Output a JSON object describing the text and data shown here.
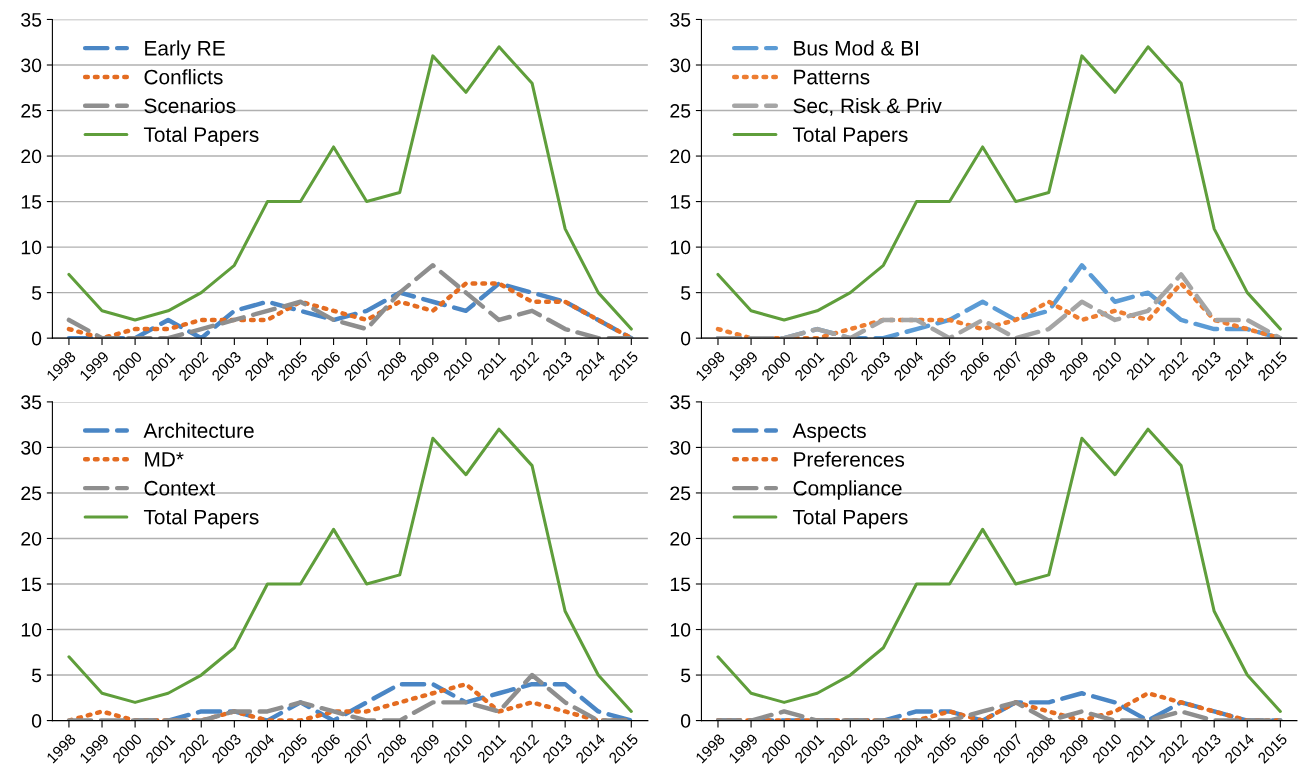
{
  "chart_data": [
    {
      "type": "line",
      "categories": [
        "1998",
        "1999",
        "2000",
        "2001",
        "2002",
        "2003",
        "2004",
        "2005",
        "2006",
        "2007",
        "2008",
        "2009",
        "2010",
        "2011",
        "2012",
        "2013",
        "2014",
        "2015"
      ],
      "ylim": [
        0,
        35
      ],
      "yticks": [
        0,
        5,
        10,
        15,
        20,
        25,
        30,
        35
      ],
      "grid": "y",
      "legend": "top left",
      "marker": "none",
      "series": [
        {
          "name": "Early RE",
          "color": "#4a86c5",
          "line_style": "dashed",
          "values": [
            0,
            0,
            0,
            2,
            0,
            3,
            4,
            3,
            2,
            3,
            5,
            4,
            3,
            6,
            5,
            4,
            2,
            0
          ]
        },
        {
          "name": "Conflicts",
          "color": "#e46c21",
          "line_style": "dotted",
          "values": [
            1,
            0,
            1,
            1,
            2,
            2,
            2,
            4,
            3,
            2,
            4,
            3,
            6,
            6,
            4,
            4,
            2,
            0
          ]
        },
        {
          "name": "Scenarios",
          "color": "#8e8e8e",
          "line_style": "dashed",
          "values": [
            2,
            0,
            0,
            0,
            1,
            2,
            3,
            4,
            2,
            1,
            5,
            8,
            5,
            2,
            3,
            1,
            0,
            0
          ]
        },
        {
          "name": "Total Papers",
          "color": "#5f9e3b",
          "line_style": "solid",
          "values": [
            7,
            3,
            2,
            3,
            5,
            8,
            15,
            15,
            21,
            15,
            16,
            31,
            27,
            32,
            28,
            12,
            5,
            1
          ]
        }
      ]
    },
    {
      "type": "line",
      "categories": [
        "1998",
        "1999",
        "2000",
        "2001",
        "2002",
        "2003",
        "2004",
        "2005",
        "2006",
        "2007",
        "2008",
        "2009",
        "2010",
        "2011",
        "2012",
        "2013",
        "2014",
        "2015"
      ],
      "ylim": [
        0,
        35
      ],
      "yticks": [
        0,
        5,
        10,
        15,
        20,
        25,
        30,
        35
      ],
      "grid": "y",
      "legend": "top left",
      "marker": "none",
      "series": [
        {
          "name": "Bus Mod & BI",
          "color": "#5b9bd5",
          "line_style": "dashed",
          "values": [
            0,
            0,
            0,
            1,
            0,
            0,
            1,
            2,
            4,
            2,
            3,
            8,
            4,
            5,
            2,
            1,
            1,
            0
          ]
        },
        {
          "name": "Patterns",
          "color": "#ed7d31",
          "line_style": "dotted",
          "values": [
            1,
            0,
            0,
            0,
            1,
            2,
            2,
            2,
            1,
            2,
            4,
            2,
            3,
            2,
            6,
            2,
            1,
            0
          ]
        },
        {
          "name": "Sec, Risk & Priv",
          "color": "#a5a5a5",
          "line_style": "dashed",
          "values": [
            0,
            0,
            0,
            1,
            0,
            2,
            2,
            0,
            2,
            0,
            1,
            4,
            2,
            3,
            7,
            2,
            2,
            0
          ]
        },
        {
          "name": "Total Papers",
          "color": "#5f9e3b",
          "line_style": "solid",
          "values": [
            7,
            3,
            2,
            3,
            5,
            8,
            15,
            15,
            21,
            15,
            16,
            31,
            27,
            32,
            28,
            12,
            5,
            1
          ]
        }
      ]
    },
    {
      "type": "line",
      "categories": [
        "1998",
        "1999",
        "2000",
        "2001",
        "2002",
        "2003",
        "2004",
        "2005",
        "2006",
        "2007",
        "2008",
        "2009",
        "2010",
        "2011",
        "2012",
        "2013",
        "2014",
        "2015"
      ],
      "ylim": [
        0,
        35
      ],
      "yticks": [
        0,
        5,
        10,
        15,
        20,
        25,
        30,
        35
      ],
      "grid": "y",
      "legend": "top left",
      "marker": "none",
      "series": [
        {
          "name": "Architecture",
          "color": "#4a86c5",
          "line_style": "dashed",
          "values": [
            null,
            null,
            0,
            0,
            1,
            1,
            0,
            2,
            0,
            2,
            4,
            4,
            2,
            3,
            4,
            4,
            1,
            0
          ]
        },
        {
          "name": "MD*",
          "color": "#e46c21",
          "line_style": "dotted",
          "values": [
            0,
            1,
            0,
            0,
            0,
            1,
            0,
            0,
            1,
            1,
            2,
            3,
            4,
            1,
            2,
            1,
            0,
            0
          ]
        },
        {
          "name": "Context",
          "color": "#8e8e8e",
          "line_style": "dashed",
          "values": [
            0,
            0,
            0,
            0,
            0,
            1,
            1,
            2,
            1,
            0,
            0,
            2,
            2,
            1,
            5,
            2,
            0,
            0
          ]
        },
        {
          "name": "Total Papers",
          "color": "#5f9e3b",
          "line_style": "solid",
          "values": [
            7,
            3,
            2,
            3,
            5,
            8,
            15,
            15,
            21,
            15,
            16,
            31,
            27,
            32,
            28,
            12,
            5,
            1
          ]
        }
      ]
    },
    {
      "type": "line",
      "categories": [
        "1998",
        "1999",
        "2000",
        "2001",
        "2002",
        "2003",
        "2004",
        "2005",
        "2006",
        "2007",
        "2008",
        "2009",
        "2010",
        "2011",
        "2012",
        "2013",
        "2014",
        "2015"
      ],
      "ylim": [
        0,
        35
      ],
      "yticks": [
        0,
        5,
        10,
        15,
        20,
        25,
        30,
        35
      ],
      "grid": "y",
      "legend": "top left",
      "marker": "none",
      "series": [
        {
          "name": "Aspects",
          "color": "#4a86c5",
          "line_style": "dashed",
          "values": [
            0,
            0,
            0,
            0,
            0,
            0,
            1,
            1,
            0,
            2,
            2,
            3,
            2,
            0,
            2,
            1,
            0,
            0
          ]
        },
        {
          "name": "Preferences",
          "color": "#e46c21",
          "line_style": "dotted",
          "values": [
            0,
            0,
            0,
            0,
            0,
            0,
            0,
            1,
            0,
            2,
            1,
            0,
            1,
            3,
            2,
            1,
            0,
            0
          ]
        },
        {
          "name": "Compliance",
          "color": "#8e8e8e",
          "line_style": "dashed",
          "values": [
            0,
            0,
            1,
            0,
            0,
            0,
            0,
            0,
            1,
            2,
            0,
            1,
            0,
            0,
            1,
            0,
            0,
            0
          ]
        },
        {
          "name": "Total Papers",
          "color": "#5f9e3b",
          "line_style": "solid",
          "values": [
            7,
            3,
            2,
            3,
            5,
            8,
            15,
            15,
            21,
            15,
            16,
            31,
            27,
            32,
            28,
            12,
            5,
            1
          ]
        }
      ]
    }
  ]
}
